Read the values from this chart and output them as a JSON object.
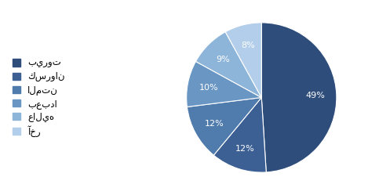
{
  "labels": [
    "بيروت",
    "كسروان",
    "المتن",
    "بعبدا",
    "عاليه",
    "آخر"
  ],
  "values": [
    49,
    12,
    12,
    10,
    9,
    8
  ],
  "colors": [
    "#2E4D7B",
    "#3D6094",
    "#4F7BAD",
    "#6A96C3",
    "#8DB4D9",
    "#B2CEEA"
  ],
  "autopct_fontsize": 8,
  "legend_fontsize": 8.5,
  "background_color": "#FFFFFF",
  "text_color": "#FFFFFF",
  "startangle": 90,
  "figsize": [
    4.83,
    2.49
  ],
  "dpi": 100
}
